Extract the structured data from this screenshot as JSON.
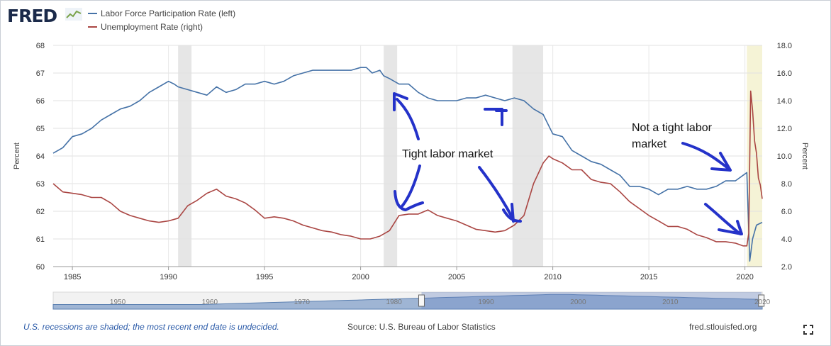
{
  "header": {
    "logo_text": "FRED",
    "legend": [
      {
        "label": "Labor Force Participation Rate (left)",
        "color": "#4572a7"
      },
      {
        "label": "Unemployment Rate (right)",
        "color": "#aa4643"
      }
    ]
  },
  "annotations": {
    "tight_market": "Tight labor market",
    "not_tight_line1": "Not a tight labor",
    "not_tight_line2": "market"
  },
  "footer": {
    "note": "U.S. recessions are shaded; the most recent end date is undecided.",
    "source": "Source: U.S. Bureau of Labor Statistics",
    "url": "fred.stlouisfed.org"
  },
  "chart_data": {
    "type": "line",
    "xlim": [
      1984,
      2020.9
    ],
    "x_ticks": [
      "1985",
      "1990",
      "1995",
      "2000",
      "2005",
      "2010",
      "2015",
      "2020"
    ],
    "x_tick_values": [
      1985,
      1990,
      1995,
      2000,
      2005,
      2010,
      2015,
      2020
    ],
    "y_left": {
      "label": "Percent",
      "ylim": [
        60,
        68
      ],
      "ticks": [
        "60",
        "61",
        "62",
        "63",
        "64",
        "65",
        "66",
        "67",
        "68"
      ]
    },
    "y_right": {
      "label": "Percent",
      "ylim": [
        2,
        18
      ],
      "ticks": [
        "2.0",
        "4.0",
        "6.0",
        "8.0",
        "10.0",
        "12.0",
        "14.0",
        "16.0",
        "18.0"
      ]
    },
    "grid": true,
    "recessions": [
      [
        1990.5,
        1991.2
      ],
      [
        2001.2,
        2001.9
      ],
      [
        2007.9,
        2009.5
      ]
    ],
    "current_recession": [
      2020.1,
      2020.9
    ],
    "series": [
      {
        "name": "Labor Force Participation Rate (left)",
        "axis": "left",
        "color": "#4572a7",
        "points": [
          [
            1984.0,
            64.1
          ],
          [
            1984.5,
            64.3
          ],
          [
            1985.0,
            64.7
          ],
          [
            1985.5,
            64.8
          ],
          [
            1986.0,
            65.0
          ],
          [
            1986.5,
            65.3
          ],
          [
            1987.0,
            65.5
          ],
          [
            1987.5,
            65.7
          ],
          [
            1988.0,
            65.8
          ],
          [
            1988.5,
            66.0
          ],
          [
            1989.0,
            66.3
          ],
          [
            1989.5,
            66.5
          ],
          [
            1990.0,
            66.7
          ],
          [
            1990.3,
            66.6
          ],
          [
            1990.5,
            66.5
          ],
          [
            1991.0,
            66.4
          ],
          [
            1991.5,
            66.3
          ],
          [
            1992.0,
            66.2
          ],
          [
            1992.5,
            66.5
          ],
          [
            1993.0,
            66.3
          ],
          [
            1993.5,
            66.4
          ],
          [
            1994.0,
            66.6
          ],
          [
            1994.5,
            66.6
          ],
          [
            1995.0,
            66.7
          ],
          [
            1995.5,
            66.6
          ],
          [
            1996.0,
            66.7
          ],
          [
            1996.5,
            66.9
          ],
          [
            1997.0,
            67.0
          ],
          [
            1997.5,
            67.1
          ],
          [
            1998.0,
            67.1
          ],
          [
            1998.5,
            67.1
          ],
          [
            1999.0,
            67.1
          ],
          [
            1999.5,
            67.1
          ],
          [
            2000.0,
            67.2
          ],
          [
            2000.3,
            67.2
          ],
          [
            2000.6,
            67.0
          ],
          [
            2001.0,
            67.1
          ],
          [
            2001.2,
            66.9
          ],
          [
            2001.5,
            66.8
          ],
          [
            2002.0,
            66.6
          ],
          [
            2002.5,
            66.6
          ],
          [
            2003.0,
            66.3
          ],
          [
            2003.5,
            66.1
          ],
          [
            2004.0,
            66.0
          ],
          [
            2004.5,
            66.0
          ],
          [
            2005.0,
            66.0
          ],
          [
            2005.5,
            66.1
          ],
          [
            2006.0,
            66.1
          ],
          [
            2006.5,
            66.2
          ],
          [
            2007.0,
            66.1
          ],
          [
            2007.5,
            66.0
          ],
          [
            2008.0,
            66.1
          ],
          [
            2008.5,
            66.0
          ],
          [
            2009.0,
            65.7
          ],
          [
            2009.5,
            65.5
          ],
          [
            2010.0,
            64.8
          ],
          [
            2010.5,
            64.7
          ],
          [
            2011.0,
            64.2
          ],
          [
            2011.5,
            64.0
          ],
          [
            2012.0,
            63.8
          ],
          [
            2012.5,
            63.7
          ],
          [
            2013.0,
            63.5
          ],
          [
            2013.5,
            63.3
          ],
          [
            2014.0,
            62.9
          ],
          [
            2014.5,
            62.9
          ],
          [
            2015.0,
            62.8
          ],
          [
            2015.5,
            62.6
          ],
          [
            2016.0,
            62.8
          ],
          [
            2016.5,
            62.8
          ],
          [
            2017.0,
            62.9
          ],
          [
            2017.5,
            62.8
          ],
          [
            2018.0,
            62.8
          ],
          [
            2018.5,
            62.9
          ],
          [
            2019.0,
            63.1
          ],
          [
            2019.5,
            63.1
          ],
          [
            2019.9,
            63.3
          ],
          [
            2020.1,
            63.4
          ],
          [
            2020.25,
            60.2
          ],
          [
            2020.4,
            61.0
          ],
          [
            2020.6,
            61.5
          ],
          [
            2020.9,
            61.6
          ]
        ]
      },
      {
        "name": "Unemployment Rate (right)",
        "axis": "right",
        "color": "#aa4643",
        "points": [
          [
            1984.0,
            8.0
          ],
          [
            1984.5,
            7.4
          ],
          [
            1985.0,
            7.3
          ],
          [
            1985.5,
            7.2
          ],
          [
            1986.0,
            7.0
          ],
          [
            1986.5,
            7.0
          ],
          [
            1987.0,
            6.6
          ],
          [
            1987.5,
            6.0
          ],
          [
            1988.0,
            5.7
          ],
          [
            1988.5,
            5.5
          ],
          [
            1989.0,
            5.3
          ],
          [
            1989.5,
            5.2
          ],
          [
            1990.0,
            5.3
          ],
          [
            1990.5,
            5.5
          ],
          [
            1991.0,
            6.4
          ],
          [
            1991.5,
            6.8
          ],
          [
            1992.0,
            7.3
          ],
          [
            1992.5,
            7.6
          ],
          [
            1993.0,
            7.1
          ],
          [
            1993.5,
            6.9
          ],
          [
            1994.0,
            6.6
          ],
          [
            1994.5,
            6.1
          ],
          [
            1995.0,
            5.5
          ],
          [
            1995.5,
            5.6
          ],
          [
            1996.0,
            5.5
          ],
          [
            1996.5,
            5.3
          ],
          [
            1997.0,
            5.0
          ],
          [
            1997.5,
            4.8
          ],
          [
            1998.0,
            4.6
          ],
          [
            1998.5,
            4.5
          ],
          [
            1999.0,
            4.3
          ],
          [
            1999.5,
            4.2
          ],
          [
            2000.0,
            4.0
          ],
          [
            2000.5,
            4.0
          ],
          [
            2001.0,
            4.2
          ],
          [
            2001.5,
            4.6
          ],
          [
            2002.0,
            5.7
          ],
          [
            2002.5,
            5.8
          ],
          [
            2003.0,
            5.8
          ],
          [
            2003.5,
            6.1
          ],
          [
            2004.0,
            5.7
          ],
          [
            2004.5,
            5.5
          ],
          [
            2005.0,
            5.3
          ],
          [
            2005.5,
            5.0
          ],
          [
            2006.0,
            4.7
          ],
          [
            2006.5,
            4.6
          ],
          [
            2007.0,
            4.5
          ],
          [
            2007.5,
            4.6
          ],
          [
            2008.0,
            5.0
          ],
          [
            2008.5,
            5.7
          ],
          [
            2009.0,
            8.0
          ],
          [
            2009.5,
            9.5
          ],
          [
            2009.8,
            10.0
          ],
          [
            2010.0,
            9.8
          ],
          [
            2010.5,
            9.5
          ],
          [
            2011.0,
            9.0
          ],
          [
            2011.5,
            9.0
          ],
          [
            2012.0,
            8.3
          ],
          [
            2012.5,
            8.1
          ],
          [
            2013.0,
            8.0
          ],
          [
            2013.5,
            7.4
          ],
          [
            2014.0,
            6.7
          ],
          [
            2014.5,
            6.2
          ],
          [
            2015.0,
            5.7
          ],
          [
            2015.5,
            5.3
          ],
          [
            2016.0,
            4.9
          ],
          [
            2016.5,
            4.9
          ],
          [
            2017.0,
            4.7
          ],
          [
            2017.5,
            4.3
          ],
          [
            2018.0,
            4.1
          ],
          [
            2018.5,
            3.8
          ],
          [
            2019.0,
            3.8
          ],
          [
            2019.5,
            3.7
          ],
          [
            2019.9,
            3.5
          ],
          [
            2020.1,
            3.5
          ],
          [
            2020.2,
            4.4
          ],
          [
            2020.3,
            14.7
          ],
          [
            2020.4,
            13.3
          ],
          [
            2020.5,
            11.1
          ],
          [
            2020.6,
            10.2
          ],
          [
            2020.7,
            8.4
          ],
          [
            2020.8,
            7.9
          ],
          [
            2020.9,
            6.9
          ]
        ]
      }
    ],
    "navigator": {
      "labels": [
        "1950",
        "1960",
        "1970",
        "1980",
        "1990",
        "2000",
        "2010",
        "2020"
      ]
    }
  }
}
